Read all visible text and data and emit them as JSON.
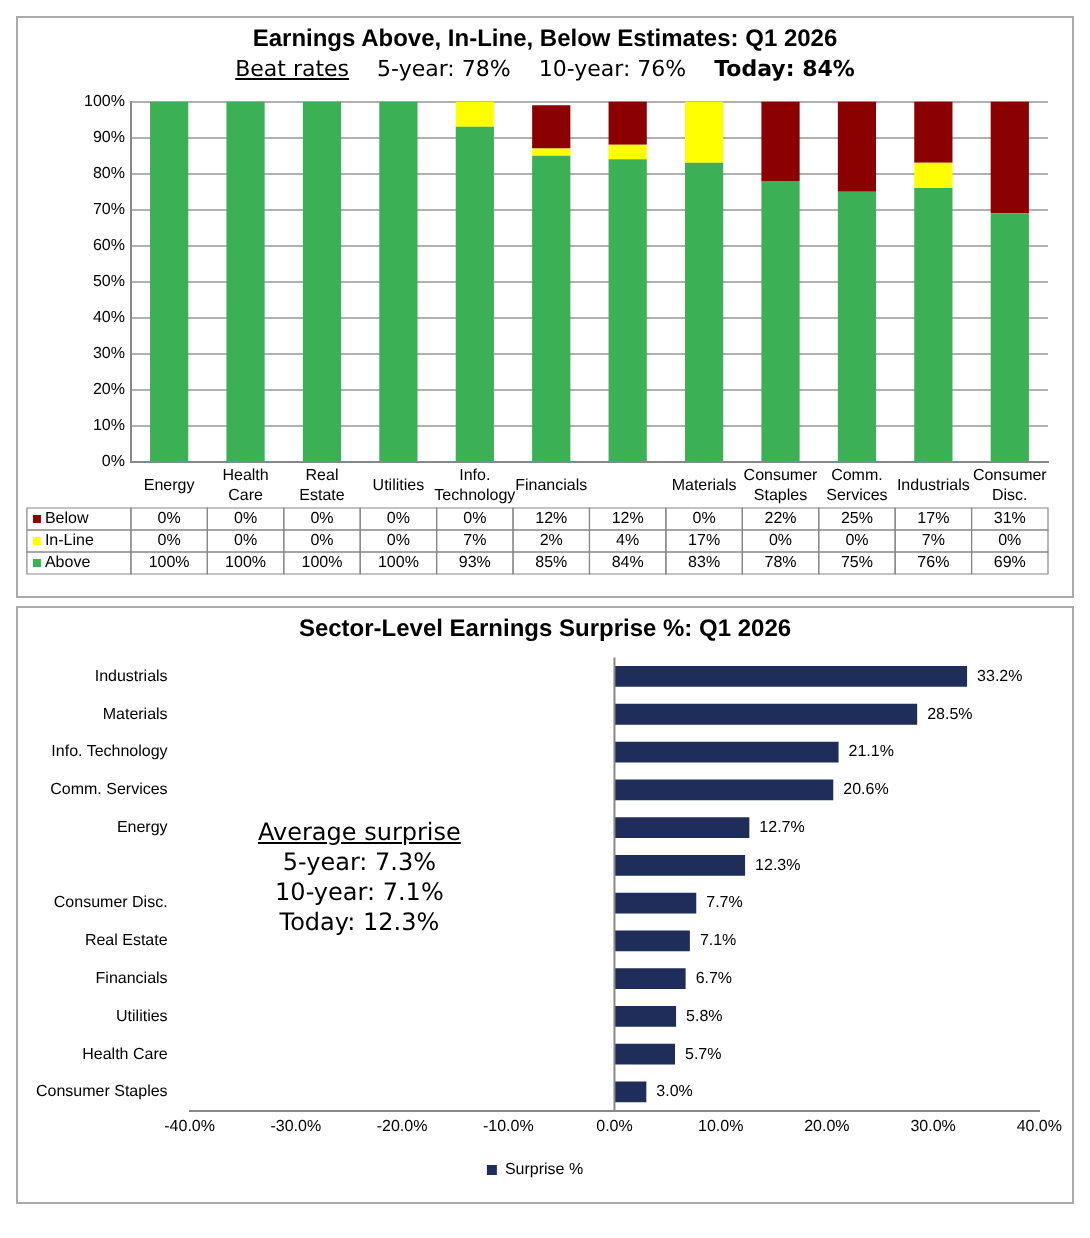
{
  "chart_data": [
    {
      "type": "bar",
      "title": "Earnings Above, In-Line, Below Estimates: Q1 2026",
      "stacked": true,
      "grid": "y",
      "legend": "bottom left",
      "categories": [
        "Energy",
        "Health Care",
        "Real Estate",
        "Utilities",
        "Info. Technology",
        "Financials",
        null,
        "Materials",
        "Consumer Staples",
        "Comm. Services",
        "Industrials",
        "Consumer Disc."
      ],
      "series": [
        {
          "name": "Above",
          "color": "#3cb054",
          "values": [
            100,
            100,
            100,
            100,
            93,
            85,
            84,
            83,
            78,
            75,
            76,
            69
          ],
          "value_labels": [
            "100%",
            "100%",
            "100%",
            "100%",
            "93%",
            "85%",
            "84%",
            "83%",
            "78%",
            "75%",
            "76%",
            "69%"
          ]
        },
        {
          "name": "In-Line",
          "color": "#ffff00",
          "values": [
            0,
            0,
            0,
            0,
            7,
            2,
            4,
            17,
            0,
            0,
            7,
            0
          ],
          "value_labels": [
            "0%",
            "0%",
            "0%",
            "0%",
            "7%",
            "2%",
            "4%",
            "17%",
            "0%",
            "0%",
            "7%",
            "0%"
          ]
        },
        {
          "name": "Below",
          "color": "#8b0000",
          "values": [
            0,
            0,
            0,
            0,
            0,
            12,
            12,
            0,
            22,
            25,
            17,
            31
          ],
          "value_labels": [
            "0%",
            "0%",
            "0%",
            "0%",
            "0%",
            "12%",
            "12%",
            "0%",
            "22%",
            "25%",
            "17%",
            "31%"
          ]
        }
      ],
      "ylim": [
        0,
        100
      ],
      "yticks": [
        {
          "value": 0,
          "label": "0%"
        },
        {
          "value": 10,
          "label": "10%"
        },
        {
          "value": 20,
          "label": "20%"
        },
        {
          "value": 30,
          "label": "30%"
        },
        {
          "value": 40,
          "label": "40%"
        },
        {
          "value": 50,
          "label": "50%"
        },
        {
          "value": 60,
          "label": "60%"
        },
        {
          "value": 70,
          "label": "70%"
        },
        {
          "value": 80,
          "label": "80%"
        },
        {
          "value": 90,
          "label": "90%"
        },
        {
          "value": 100,
          "label": "100%"
        }
      ],
      "annotations": [
        "Beat rates",
        "5-year: 78%",
        "10-year: 76%",
        "Today: 84%"
      ]
    },
    {
      "type": "bar",
      "title": "Sector-Level Earnings Surprise %: Q1 2026",
      "orientation": "horizontal",
      "legend": "bottom",
      "categories": [
        "Industrials",
        "Materials",
        "Info. Technology",
        "Comm. Services",
        "Energy",
        null,
        "Consumer Disc.",
        "Real Estate",
        "Financials",
        "Utilities",
        "Health Care",
        "Consumer Staples"
      ],
      "series": [
        {
          "name": "Surprise %",
          "color": "#1f2d5a",
          "values": [
            33.2,
            28.5,
            21.1,
            20.6,
            12.7,
            12.3,
            7.7,
            7.1,
            6.7,
            5.8,
            5.7,
            3.0
          ],
          "value_labels": [
            "33.2%",
            "28.5%",
            "21.1%",
            "20.6%",
            "12.7%",
            "12.3%",
            "7.7%",
            "7.1%",
            "6.7%",
            "5.8%",
            "5.7%",
            "3.0%"
          ]
        }
      ],
      "xlim": [
        -40,
        40
      ],
      "xticks": [
        {
          "value": -40,
          "label": "-40.0%"
        },
        {
          "value": -30,
          "label": "-30.0%"
        },
        {
          "value": -20,
          "label": "-20.0%"
        },
        {
          "value": -10,
          "label": "-10.0%"
        },
        {
          "value": 0,
          "label": "0.0%"
        },
        {
          "value": 10,
          "label": "10.0%"
        },
        {
          "value": 20,
          "label": "20.0%"
        },
        {
          "value": 30,
          "label": "30.0%"
        },
        {
          "value": 40,
          "label": "40.0%"
        }
      ],
      "annotations": [
        "Average surprise",
        "5-year: 7.3%",
        "10-year: 7.1%",
        "Today: 12.3%"
      ]
    }
  ]
}
